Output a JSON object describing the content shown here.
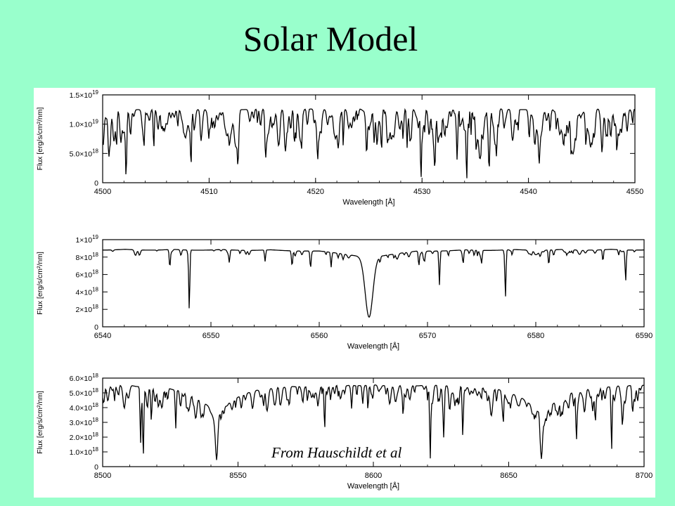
{
  "slide": {
    "title": "Solar Model",
    "credit": "From Hauschildt et al"
  },
  "colors": {
    "background": "#99ffcc",
    "panel": "#ffffff",
    "ink": "#000000"
  },
  "chart_data": [
    {
      "type": "line",
      "xlabel": "Wavelength [Å]",
      "ylabel": "Flux [erg/s/cm²/nm]",
      "xlim": [
        4500,
        4550
      ],
      "xticks": [
        4500,
        4510,
        4520,
        4530,
        4540,
        4550
      ],
      "ylim": [
        0,
        1.5e+19
      ],
      "yticks": [
        {
          "v": 0,
          "m": "0",
          "e": ""
        },
        {
          "v": 5e+18,
          "m": "5.0×10",
          "e": "18"
        },
        {
          "v": 1e+19,
          "m": "1.0×10",
          "e": "19"
        },
        {
          "v": 1.5e+19,
          "m": "1.5×10",
          "e": "19"
        }
      ],
      "continuum": 1.26e+19,
      "profile": "dense",
      "lines": [
        [
          4501.3,
          0.45,
          0.05
        ],
        [
          4502.2,
          0.9,
          0.05
        ],
        [
          4504.8,
          0.55,
          0.05
        ],
        [
          4508.3,
          0.75,
          0.05
        ],
        [
          4512.7,
          0.55,
          0.05
        ],
        [
          4515.3,
          0.5,
          0.05
        ],
        [
          4518.0,
          0.45,
          0.05
        ],
        [
          4520.2,
          0.5,
          0.05
        ],
        [
          4522.6,
          0.5,
          0.05
        ],
        [
          4524.8,
          0.5,
          0.05
        ],
        [
          4526.2,
          0.55,
          0.05
        ],
        [
          4528.6,
          0.5,
          0.05
        ],
        [
          4529.9,
          0.98,
          0.05
        ],
        [
          4531.2,
          0.6,
          0.05
        ],
        [
          4533.3,
          0.6,
          0.05
        ],
        [
          4534.2,
          0.95,
          0.05
        ],
        [
          4535.5,
          0.55,
          0.05
        ],
        [
          4536.3,
          0.7,
          0.05
        ],
        [
          4537.0,
          0.5,
          0.05
        ],
        [
          4541.0,
          0.5,
          0.05
        ],
        [
          4544.0,
          0.55,
          0.05
        ],
        [
          4546.0,
          0.35,
          0.05
        ],
        [
          4548.3,
          0.5,
          0.05
        ]
      ]
    },
    {
      "type": "line",
      "xlabel": "Wavelength [Å]",
      "ylabel": "Flux [erg/s/cm²/nm]",
      "xlim": [
        6540,
        6590
      ],
      "xticks": [
        6540,
        6550,
        6560,
        6570,
        6580,
        6590
      ],
      "ylim": [
        0,
        1e+19
      ],
      "yticks": [
        {
          "v": 0,
          "m": "0",
          "e": ""
        },
        {
          "v": 2e+18,
          "m": "2×10",
          "e": "18"
        },
        {
          "v": 4e+18,
          "m": "4×10",
          "e": "18"
        },
        {
          "v": 6e+18,
          "m": "6×10",
          "e": "18"
        },
        {
          "v": 8e+18,
          "m": "8×10",
          "e": "18"
        },
        {
          "v": 1e+19,
          "m": "1×10",
          "e": "19"
        }
      ],
      "continuum": 8.9e+18,
      "profile": "sparse",
      "broad_lines": [
        [
          6564.6,
          0.78,
          0.35,
          0.19,
          2.6
        ]
      ],
      "lines": [
        [
          6546.2,
          0.2,
          0.05
        ],
        [
          6548.0,
          0.78,
          0.05
        ],
        [
          6551.7,
          0.15,
          0.05
        ],
        [
          6555.0,
          0.15,
          0.05
        ],
        [
          6557.5,
          0.2,
          0.05
        ],
        [
          6559.2,
          0.2,
          0.05
        ],
        [
          6561.1,
          0.2,
          0.05
        ],
        [
          6569.2,
          0.18,
          0.05
        ],
        [
          6571.1,
          0.45,
          0.05
        ],
        [
          6573.3,
          0.15,
          0.05
        ],
        [
          6575.0,
          0.15,
          0.05
        ],
        [
          6577.2,
          0.6,
          0.05
        ],
        [
          6581.2,
          0.2,
          0.05
        ],
        [
          6586.2,
          0.15,
          0.05
        ],
        [
          6588.3,
          0.4,
          0.05
        ]
      ]
    },
    {
      "type": "line",
      "xlabel": "Wavelength [Å]",
      "ylabel": "Flux [erg/s/cm²/nm]",
      "xlim": [
        8500,
        8700
      ],
      "xticks": [
        8500,
        8550,
        8600,
        8650,
        8700
      ],
      "ylim": [
        0,
        6e+18
      ],
      "yticks": [
        {
          "v": 0,
          "m": "0",
          "e": ""
        },
        {
          "v": 1e+18,
          "m": "1.0×10",
          "e": "18"
        },
        {
          "v": 2e+18,
          "m": "2.0×10",
          "e": "18"
        },
        {
          "v": 3e+18,
          "m": "3.0×10",
          "e": "18"
        },
        {
          "v": 4e+18,
          "m": "4.0×10",
          "e": "18"
        },
        {
          "v": 5e+18,
          "m": "5.0×10",
          "e": "18"
        },
        {
          "v": 6e+18,
          "m": "6.0×10",
          "e": "18"
        }
      ],
      "continuum": 5.6e+18,
      "profile": "medium",
      "broad_lines": [
        [
          8542.1,
          0.6,
          0.4,
          0.6,
          8.0
        ],
        [
          8662.1,
          0.6,
          0.4,
          0.6,
          8.0
        ]
      ],
      "lines": [
        [
          8514.0,
          0.7,
          0.2
        ],
        [
          8515.0,
          0.85,
          0.2
        ],
        [
          8518.0,
          0.4,
          0.2
        ],
        [
          8527.0,
          0.5,
          0.2
        ],
        [
          8531.0,
          0.2,
          0.2
        ],
        [
          8582.0,
          0.55,
          0.2
        ],
        [
          8592.0,
          0.25,
          0.2
        ],
        [
          8598.0,
          0.3,
          0.2
        ],
        [
          8611.0,
          0.35,
          0.2
        ],
        [
          8621.0,
          0.9,
          0.2
        ],
        [
          8626.0,
          0.55,
          0.2
        ],
        [
          8633.0,
          0.6,
          0.2
        ],
        [
          8648.0,
          0.4,
          0.2
        ],
        [
          8675.0,
          0.6,
          0.2
        ],
        [
          8682.0,
          0.4,
          0.2
        ],
        [
          8688.0,
          0.8,
          0.2
        ],
        [
          8692.0,
          0.3,
          0.2
        ]
      ]
    }
  ]
}
